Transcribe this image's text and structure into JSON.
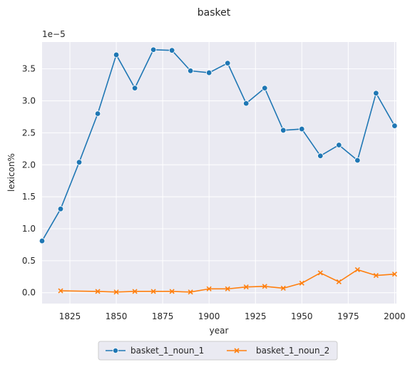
{
  "chart_data": {
    "type": "line",
    "title": "basket",
    "xlabel": "year",
    "ylabel": "lexicon%",
    "y_scale_label": "1e−5",
    "xlim": [
      1810,
      2001
    ],
    "ylim": [
      -0.17,
      3.92
    ],
    "x_ticks": [
      1825,
      1850,
      1875,
      1900,
      1925,
      1950,
      1975,
      2000
    ],
    "y_ticks": [
      0.0,
      0.5,
      1.0,
      1.5,
      2.0,
      2.5,
      3.0,
      3.5
    ],
    "grid": true,
    "legend_placement": "below",
    "series": [
      {
        "name": "basket_1_noun_1",
        "color": "#1f77b4",
        "marker": "circle",
        "x": [
          1810,
          1820,
          1830,
          1840,
          1850,
          1860,
          1870,
          1880,
          1890,
          1900,
          1910,
          1920,
          1930,
          1940,
          1950,
          1960,
          1970,
          1980,
          1990,
          2000
        ],
        "y": [
          0.81,
          1.31,
          2.04,
          2.8,
          3.72,
          3.2,
          3.8,
          3.79,
          3.47,
          3.44,
          3.59,
          2.96,
          3.2,
          2.54,
          2.56,
          2.14,
          2.31,
          2.07,
          3.12,
          2.61
        ]
      },
      {
        "name": "basket_1_noun_2",
        "color": "#ff7f0e",
        "marker": "x",
        "x": [
          1820,
          1840,
          1850,
          1860,
          1870,
          1880,
          1890,
          1900,
          1910,
          1920,
          1930,
          1940,
          1950,
          1960,
          1970,
          1980,
          1990,
          2000
        ],
        "y": [
          0.03,
          0.02,
          0.01,
          0.02,
          0.02,
          0.02,
          0.01,
          0.06,
          0.06,
          0.09,
          0.1,
          0.07,
          0.15,
          0.31,
          0.17,
          0.36,
          0.27,
          0.29
        ]
      }
    ]
  }
}
